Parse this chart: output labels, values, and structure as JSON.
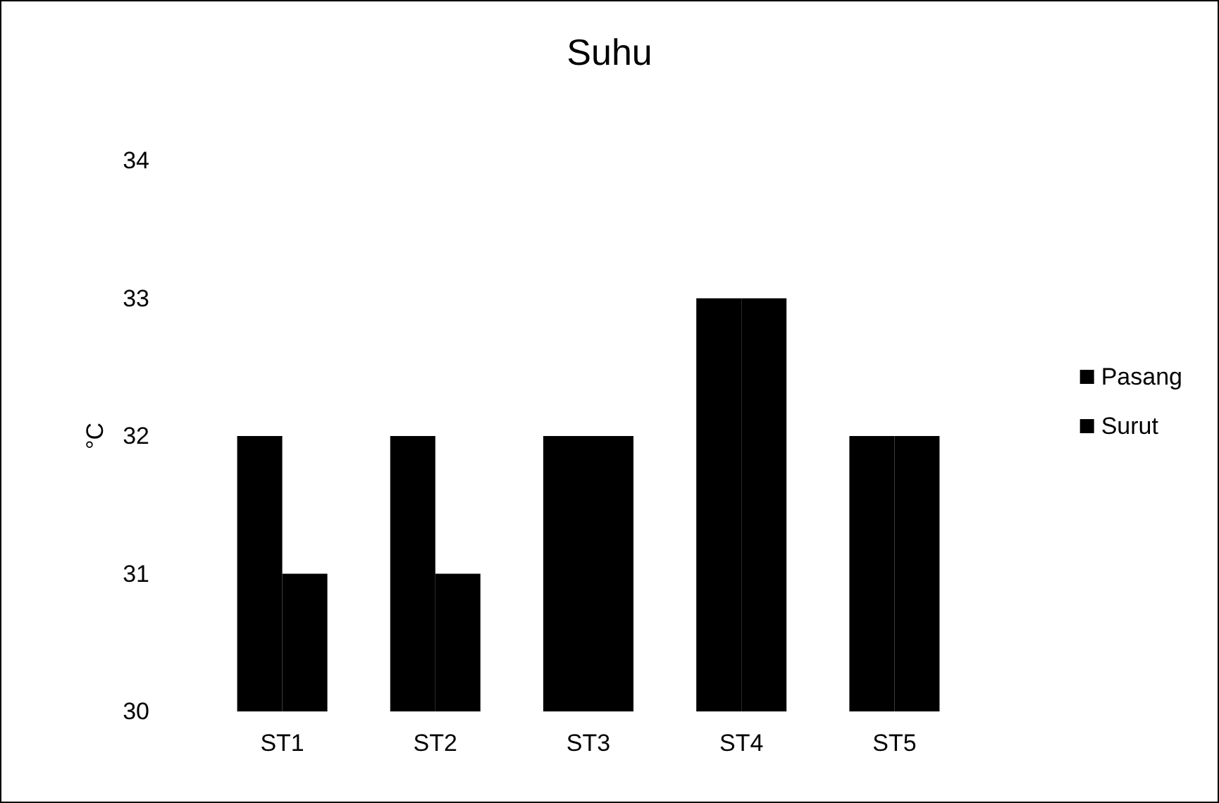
{
  "chart_data": {
    "type": "bar",
    "title": "Suhu",
    "ylabel": "°C",
    "categories": [
      "ST1",
      "ST2",
      "ST3",
      "ST4",
      "ST5"
    ],
    "series": [
      {
        "name": "Pasang",
        "color": "#000000",
        "values": [
          32,
          32,
          32,
          33,
          32
        ]
      },
      {
        "name": "Surut",
        "color": "#000000",
        "values": [
          31,
          31,
          32,
          33,
          32
        ]
      }
    ],
    "ylim": [
      30,
      34
    ],
    "yticks": [
      30,
      31,
      32,
      33,
      34
    ],
    "grid": false,
    "legend": "right"
  }
}
